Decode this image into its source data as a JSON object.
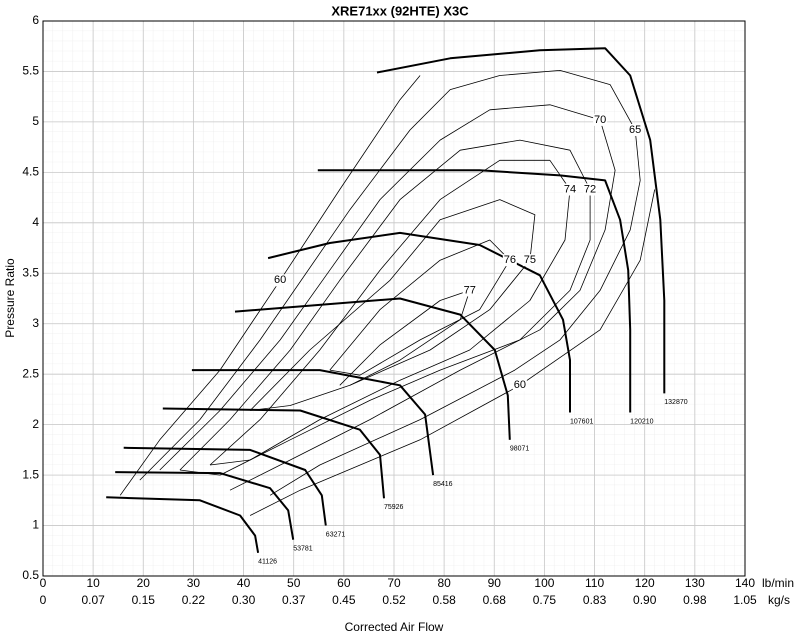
{
  "chart_data": {
    "type": "line",
    "title": "XRE71xx (92HTE) X3C",
    "x_label": "Corrected Air Flow",
    "y_label": "Pressure Ratio",
    "x_unit": "lb/min",
    "x2_unit": "kg/s",
    "xlim": [
      0,
      140
    ],
    "ylim": [
      0.5,
      6
    ],
    "xticks": [
      0,
      10,
      20,
      30,
      40,
      50,
      60,
      70,
      80,
      90,
      100,
      110,
      120,
      130,
      140
    ],
    "x2tick_labels": [
      "0",
      "0.07",
      "0.15",
      "0.22",
      "0.30",
      "0.37",
      "0.45",
      "0.52",
      "0.58",
      "0.68",
      "0.75",
      "0.83",
      "0.90",
      "0.98",
      "1.05"
    ],
    "yticks": [
      0.5,
      1,
      1.5,
      2,
      2.5,
      3,
      3.5,
      4,
      4.5,
      5,
      5.5,
      6
    ],
    "grid": true,
    "minor_grid": true,
    "series": [
      {
        "name": "41126",
        "color": "#000000",
        "line_width": 2,
        "x": [
          12.6,
          31.3,
          39.3,
          42.3,
          42.9
        ],
        "values": [
          1.28,
          1.25,
          1.1,
          0.9,
          0.73
        ]
      },
      {
        "name": "53781",
        "color": "#000000",
        "line_width": 2,
        "x": [
          14.4,
          35.3,
          45.3,
          48.9,
          49.9
        ],
        "values": [
          1.53,
          1.52,
          1.37,
          1.15,
          0.86
        ]
      },
      {
        "name": "63271",
        "color": "#000000",
        "line_width": 2,
        "x": [
          16.1,
          41.3,
          52.3,
          55.6,
          56.4
        ],
        "values": [
          1.77,
          1.75,
          1.55,
          1.3,
          1.0
        ]
      },
      {
        "name": "75926",
        "color": "#000000",
        "line_width": 2,
        "x": [
          23.9,
          51.3,
          63.2,
          67.2,
          68.0
        ],
        "values": [
          2.16,
          2.14,
          1.95,
          1.7,
          1.27
        ]
      },
      {
        "name": "85416",
        "color": "#000000",
        "line_width": 2,
        "x": [
          29.7,
          55.2,
          71.2,
          76.2,
          77.8
        ],
        "values": [
          2.54,
          2.54,
          2.39,
          2.1,
          1.5
        ]
      },
      {
        "name": "98071",
        "color": "#000000",
        "line_width": 2,
        "x": [
          38.3,
          71.2,
          83.2,
          90.1,
          92.7,
          93.1
        ],
        "values": [
          3.12,
          3.25,
          3.09,
          2.74,
          2.29,
          1.85
        ]
      },
      {
        "name": "107601",
        "color": "#000000",
        "line_width": 2,
        "x": [
          44.9,
          57.2,
          71.2,
          87.1,
          99.1,
          103.7,
          105.1,
          105.1
        ],
        "values": [
          3.65,
          3.8,
          3.9,
          3.78,
          3.48,
          3.04,
          2.64,
          2.12
        ]
      },
      {
        "name": "120210",
        "color": "#000000",
        "line_width": 2,
        "x": [
          54.8,
          87.1,
          103.1,
          112.1,
          115.1,
          116.7,
          117.1,
          117.1
        ],
        "values": [
          4.52,
          4.52,
          4.47,
          4.42,
          4.03,
          3.53,
          2.94,
          2.12
        ]
      },
      {
        "name": "132870",
        "color": "#000000",
        "line_width": 2,
        "x": [
          66.6,
          81.2,
          99.1,
          112.1,
          117.1,
          121.1,
          123.1,
          123.9,
          123.9
        ],
        "values": [
          5.49,
          5.63,
          5.71,
          5.73,
          5.46,
          4.82,
          4.03,
          3.23,
          2.31
        ]
      },
      {
        "name": "60",
        "color": "#000000",
        "line_width": 0.8,
        "x": [
          15.4,
          23.3,
          35.3,
          47.3,
          59.2,
          71.2,
          75.2
        ],
        "values": [
          1.3,
          1.85,
          2.54,
          3.43,
          4.33,
          5.22,
          5.46
        ]
      },
      {
        "name": "60",
        "color": "#000000",
        "line_width": 0.8,
        "x": [
          122.0,
          119.1,
          111.1,
          95.1,
          75.2,
          51.3,
          41.3
        ],
        "values": [
          4.33,
          3.63,
          2.94,
          2.39,
          1.85,
          1.35,
          1.1
        ]
      },
      {
        "name": "65",
        "color": "#000000",
        "line_width": 0.8,
        "x": [
          19.3,
          31.3,
          43.3,
          61.2,
          73.2,
          81.2,
          91.1,
          103.1,
          113.1,
          118.1,
          119.1,
          117.1,
          111.1,
          103.1,
          94.1,
          75.2,
          55.2,
          45.3
        ],
        "values": [
          1.45,
          2.05,
          2.84,
          4.13,
          4.92,
          5.32,
          5.46,
          5.51,
          5.37,
          4.92,
          4.42,
          3.93,
          3.33,
          2.84,
          2.54,
          2.05,
          1.6,
          1.3
        ]
      },
      {
        "name": "70",
        "color": "#000000",
        "line_width": 0.8,
        "x": [
          23.3,
          35.3,
          47.3,
          57.2,
          67.2,
          79.2,
          89.1,
          101.1,
          111.1,
          114.1,
          112.1,
          107.1,
          99.1,
          83.2,
          65.2,
          49.3,
          37.3
        ],
        "values": [
          1.55,
          2.14,
          2.84,
          3.53,
          4.23,
          4.82,
          5.12,
          5.17,
          5.02,
          4.52,
          3.93,
          3.33,
          2.94,
          2.54,
          2.05,
          1.65,
          1.35
        ]
      },
      {
        "name": "72",
        "color": "#000000",
        "line_width": 0.8,
        "x": [
          27.3,
          37.3,
          49.3,
          59.2,
          71.2,
          83.2,
          95.1,
          105.1,
          109.1,
          109.1,
          105.1,
          95.1,
          79.2,
          65.2,
          49.3,
          35.3,
          27.3
        ],
        "values": [
          1.55,
          2.05,
          2.74,
          3.43,
          4.23,
          4.72,
          4.82,
          4.72,
          4.33,
          3.83,
          3.33,
          2.84,
          2.54,
          2.24,
          1.85,
          1.5,
          1.55
        ]
      },
      {
        "name": "74",
        "color": "#000000",
        "line_width": 0.8,
        "x": [
          33.3,
          43.3,
          55.2,
          67.2,
          79.2,
          91.1,
          101.1,
          105.1,
          104.1,
          97.1,
          85.1,
          71.2,
          55.2,
          41.3,
          33.3
        ],
        "values": [
          1.6,
          2.05,
          2.74,
          3.53,
          4.23,
          4.62,
          4.62,
          4.33,
          3.83,
          3.23,
          2.74,
          2.44,
          2.05,
          1.65,
          1.6
        ]
      },
      {
        "name": "75",
        "color": "#000000",
        "line_width": 0.8,
        "x": [
          41.3,
          53.2,
          69.2,
          79.2,
          91.1,
          98.1,
          97.1,
          89.1,
          77.2,
          61.2,
          49.3,
          41.3
        ],
        "values": [
          2.14,
          2.74,
          3.43,
          4.03,
          4.23,
          4.08,
          3.63,
          3.14,
          2.74,
          2.39,
          2.19,
          2.14
        ]
      },
      {
        "name": "76",
        "color": "#000000",
        "line_width": 0.8,
        "x": [
          57.2,
          67.2,
          79.2,
          89.1,
          93.1,
          87.1,
          75.2,
          63.2,
          57.2
        ],
        "values": [
          2.54,
          3.14,
          3.63,
          3.83,
          3.63,
          3.14,
          2.84,
          2.49,
          2.54
        ]
      },
      {
        "name": "77",
        "color": "#000000",
        "line_width": 0.8,
        "x": [
          59.2,
          67.2,
          79.2,
          85.1,
          83.2,
          71.2,
          61.2
        ],
        "values": [
          2.39,
          2.79,
          3.23,
          3.33,
          3.04,
          2.64,
          2.39
        ]
      }
    ]
  }
}
